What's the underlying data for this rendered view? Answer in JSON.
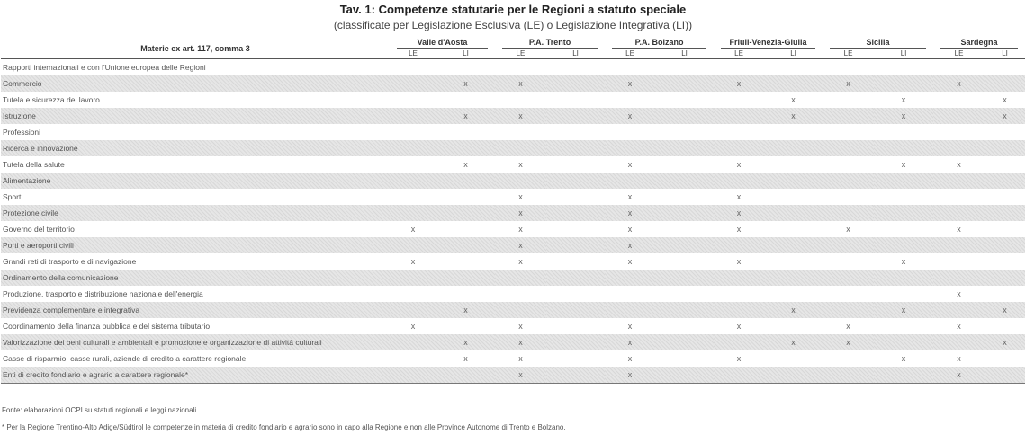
{
  "title": "Tav. 1: Competenze statutarie per le Regioni a statuto speciale",
  "subtitle": "(classificate per Legislazione Esclusiva (LE) o Legislazione Integrativa (LI))",
  "header": {
    "materie": "Materie ex art. 117, comma 3",
    "regions": [
      "Valle d'Aosta",
      "P.A. Trento",
      "P.A. Bolzano",
      "Friuli-Venezia-Giulia",
      "Sicilia",
      "Sardegna"
    ],
    "le": "LE",
    "li": "LI"
  },
  "mark_symbol": "x",
  "rows": [
    {
      "label": "Rapporti internazionali e con l'Unione europea delle Regioni",
      "marks": [
        0,
        0,
        0,
        0,
        0,
        0,
        0,
        0,
        0,
        0,
        0,
        0
      ]
    },
    {
      "label": "Commercio",
      "marks": [
        0,
        1,
        1,
        0,
        1,
        0,
        1,
        0,
        1,
        0,
        1,
        0
      ]
    },
    {
      "label": "Tutela e sicurezza del lavoro",
      "marks": [
        0,
        0,
        0,
        0,
        0,
        0,
        0,
        1,
        0,
        1,
        0,
        1
      ]
    },
    {
      "label": "Istruzione",
      "marks": [
        0,
        1,
        1,
        0,
        1,
        0,
        0,
        1,
        0,
        1,
        0,
        1
      ]
    },
    {
      "label": "Professioni",
      "marks": [
        0,
        0,
        0,
        0,
        0,
        0,
        0,
        0,
        0,
        0,
        0,
        0
      ]
    },
    {
      "label": "Ricerca e innovazione",
      "marks": [
        0,
        0,
        0,
        0,
        0,
        0,
        0,
        0,
        0,
        0,
        0,
        0
      ]
    },
    {
      "label": "Tutela della salute",
      "marks": [
        0,
        1,
        1,
        0,
        1,
        0,
        1,
        0,
        0,
        1,
        1,
        0
      ]
    },
    {
      "label": "Alimentazione",
      "marks": [
        0,
        0,
        0,
        0,
        0,
        0,
        0,
        0,
        0,
        0,
        0,
        0
      ]
    },
    {
      "label": "Sport",
      "marks": [
        0,
        0,
        1,
        0,
        1,
        0,
        1,
        0,
        0,
        0,
        0,
        0
      ]
    },
    {
      "label": "Protezione civile",
      "marks": [
        0,
        0,
        1,
        0,
        1,
        0,
        1,
        0,
        0,
        0,
        0,
        0
      ]
    },
    {
      "label": "Governo del territorio",
      "marks": [
        1,
        0,
        1,
        0,
        1,
        0,
        1,
        0,
        1,
        0,
        1,
        0
      ]
    },
    {
      "label": "Porti e aeroporti civili",
      "marks": [
        0,
        0,
        1,
        0,
        1,
        0,
        0,
        0,
        0,
        0,
        0,
        0
      ]
    },
    {
      "label": "Grandi reti di trasporto e di navigazione",
      "marks": [
        1,
        0,
        1,
        0,
        1,
        0,
        1,
        0,
        0,
        1,
        0,
        0
      ]
    },
    {
      "label": "Ordinamento della comunicazione",
      "marks": [
        0,
        0,
        0,
        0,
        0,
        0,
        0,
        0,
        0,
        0,
        0,
        0
      ]
    },
    {
      "label": "Produzione, trasporto e distribuzione nazionale dell'energia",
      "marks": [
        0,
        0,
        0,
        0,
        0,
        0,
        0,
        0,
        0,
        0,
        1,
        0
      ]
    },
    {
      "label": "Previdenza complementare e integrativa",
      "marks": [
        0,
        1,
        0,
        0,
        0,
        0,
        0,
        1,
        0,
        1,
        0,
        1
      ]
    },
    {
      "label": "Coordinamento della finanza pubblica e del sistema tributario",
      "marks": [
        1,
        0,
        1,
        0,
        1,
        0,
        1,
        0,
        1,
        0,
        1,
        0
      ]
    },
    {
      "label": "Valorizzazione dei beni culturali e ambientali e promozione e organizzazione di attività culturali",
      "marks": [
        0,
        1,
        1,
        0,
        1,
        0,
        0,
        1,
        1,
        0,
        0,
        1
      ]
    },
    {
      "label": "Casse di risparmio, casse rurali, aziende di credito a carattere regionale",
      "marks": [
        0,
        1,
        1,
        0,
        1,
        0,
        1,
        0,
        0,
        1,
        1,
        0
      ]
    },
    {
      "label": "Enti di credito fondiario e agrario a carattere regionale*",
      "marks": [
        0,
        0,
        1,
        0,
        1,
        0,
        0,
        0,
        0,
        0,
        1,
        0
      ]
    }
  ],
  "notes": {
    "source": "Fonte: elaborazioni OCPI su statuti regionali e leggi nazionali.",
    "footnote": "* Per la Regione Trentino-Alto Adige/Südtirol le competenze in materia di credito fondiario e agrario sono in capo alla Regione e non alle Province Autonome di Trento e Bolzano."
  }
}
